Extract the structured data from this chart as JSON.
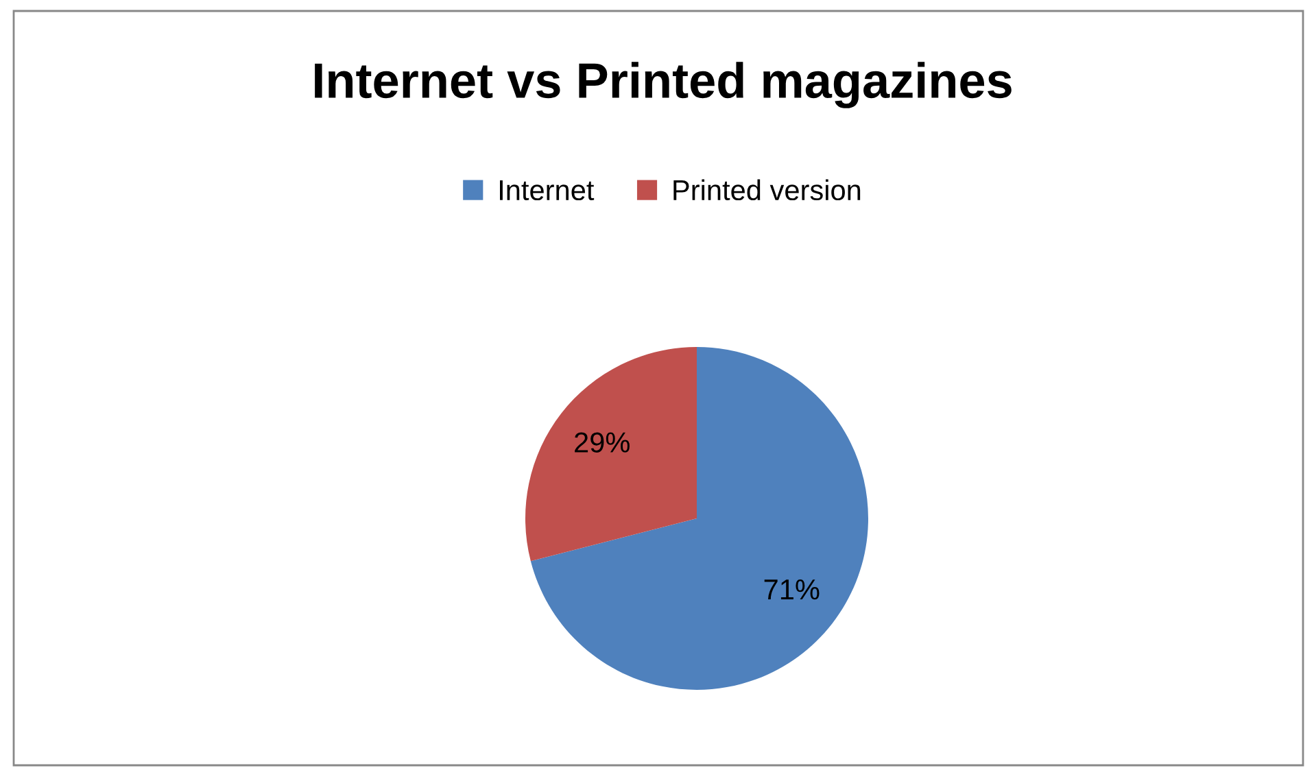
{
  "chart_data": {
    "type": "pie",
    "title": "Internet vs Printed magazines",
    "categories": [
      "Internet",
      "Printed version"
    ],
    "values": [
      71,
      29
    ],
    "colors": [
      "#4f81bd",
      "#c0504d"
    ],
    "value_labels": [
      "71%",
      "29%"
    ],
    "legend": "top"
  }
}
